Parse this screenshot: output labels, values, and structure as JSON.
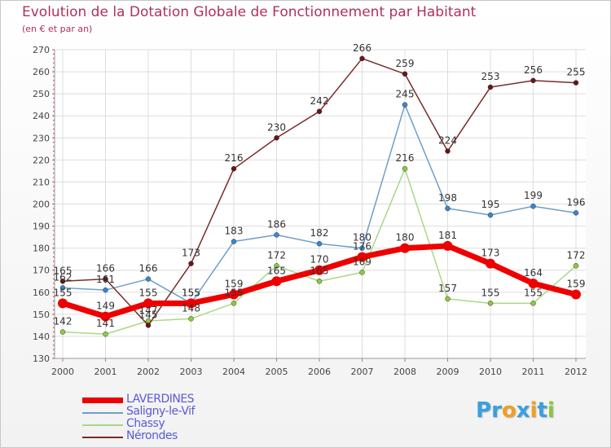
{
  "title": "Evolution de la Dotation Globale de Fonctionnement par Habitant",
  "subtitle": "(en € et par an)",
  "brand": {
    "name": "Proxiti",
    "letters": [
      {
        "ch": "P",
        "color": "#3aa0e0"
      },
      {
        "ch": "r",
        "color": "#3aa0e0"
      },
      {
        "ch": "o",
        "color": "#f0a020"
      },
      {
        "ch": "x",
        "color": "#3aa0e0"
      },
      {
        "ch": "i",
        "color": "#f0a020"
      },
      {
        "ch": "t",
        "color": "#3aa0e0"
      },
      {
        "ch": "i",
        "color": "#8cc63f"
      }
    ]
  },
  "chart_data": {
    "type": "line",
    "title": "Evolution de la Dotation Globale de Fonctionnement par Habitant",
    "subtitle": "(en € et par an)",
    "xlabel": "",
    "ylabel": "",
    "x": [
      "2000",
      "2001",
      "2002",
      "2003",
      "2004",
      "2005",
      "2006",
      "2007",
      "2008",
      "2009",
      "2010",
      "2011",
      "2012"
    ],
    "yticks": [
      130,
      140,
      150,
      160,
      170,
      180,
      190,
      200,
      210,
      220,
      230,
      240,
      250,
      260,
      270
    ],
    "ylim": [
      130,
      270
    ],
    "grid": true,
    "legend_position": "bottom-left",
    "series": [
      {
        "name": "LAVERDINES",
        "color": "#ee0000",
        "marker": "#ee0000",
        "emphasis": true,
        "values": [
          155,
          149,
          155,
          155,
          159,
          165,
          170,
          176,
          180,
          181,
          173,
          164,
          159
        ]
      },
      {
        "name": "Saligny-le-Vif",
        "color": "#6e9ec8",
        "marker": "#3a86d0",
        "emphasis": false,
        "values": [
          162,
          161,
          166,
          155,
          183,
          186,
          182,
          180,
          245,
          198,
          195,
          199,
          196
        ]
      },
      {
        "name": "Chassy",
        "color": "#a8d888",
        "marker": "#8ccc3c",
        "emphasis": false,
        "values": [
          142,
          141,
          147,
          148,
          155,
          172,
          165,
          169,
          216,
          157,
          155,
          155,
          172
        ]
      },
      {
        "name": "Nérondes",
        "color": "#7a2a2a",
        "marker": "#6a1414",
        "emphasis": false,
        "values": [
          165,
          166,
          145,
          173,
          216,
          230,
          242,
          266,
          259,
          224,
          253,
          256,
          255
        ]
      }
    ]
  }
}
